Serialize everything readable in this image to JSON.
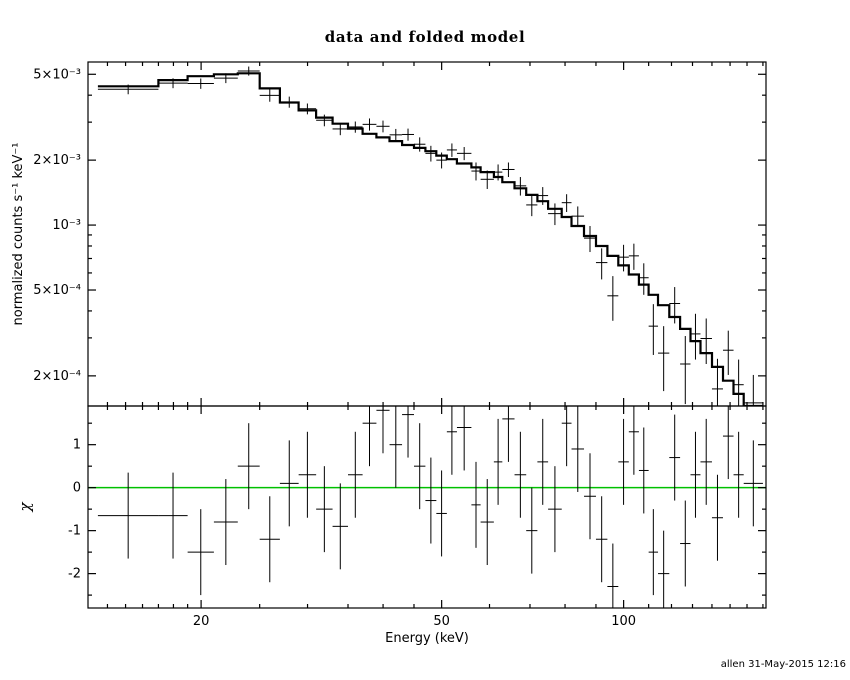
{
  "title": "data and folded model",
  "signature": "allen 31-May-2015 12:16",
  "chart_data": {
    "type": "line",
    "title": "data and folded model",
    "xlabel": "Energy (keV)",
    "xscale": "log",
    "xlim": [
      13,
      172
    ],
    "xticks": {
      "major": [
        20,
        50,
        100
      ],
      "minor": [
        14,
        15,
        16,
        17,
        18,
        19,
        25,
        30,
        35,
        40,
        45,
        60,
        70,
        80,
        90,
        110,
        120,
        130,
        140,
        150,
        160,
        170
      ]
    },
    "colors": {
      "data": "#000000",
      "model": "#000000",
      "zero_line": "#00c000"
    },
    "chi_err": 1.0,
    "panels": [
      {
        "name": "spectrum",
        "ylabel": "normalized counts s⁻¹ keV⁻¹",
        "yscale": "log",
        "ylim": [
          0.000145,
          0.0057
        ],
        "yticks": {
          "major": [
            {
              "v": 0.005,
              "label": "5×10⁻³"
            },
            {
              "v": 0.002,
              "label": "2×10⁻³"
            },
            {
              "v": 0.001,
              "label": "10⁻³"
            },
            {
              "v": 0.0005,
              "label": "5×10⁻⁴"
            },
            {
              "v": 0.0002,
              "label": "2×10⁻⁴"
            }
          ],
          "minor": [
            0.003,
            0.004,
            0.0003,
            0.0004,
            0.0006,
            0.0007,
            0.0008,
            0.0009
          ]
        }
      },
      {
        "name": "residuals",
        "ylabel": "χ",
        "yscale": "linear",
        "ylim": [
          -2.8,
          1.9
        ],
        "yticks": {
          "major": [
            {
              "v": 1,
              "label": "1"
            },
            {
              "v": 0,
              "label": "0"
            },
            {
              "v": -1,
              "label": "-1"
            },
            {
              "v": -2,
              "label": "-2"
            }
          ],
          "minor": [
            1.5,
            0.5,
            -0.5,
            -1.5,
            -2.5
          ]
        }
      }
    ],
    "bins_format": [
      "e_lo_keV",
      "e_hi_keV",
      "rate",
      "rate_err",
      "model",
      "chi"
    ],
    "bins": [
      [
        13.5,
        17,
        0.00426,
        0.00022,
        0.0044,
        -0.65
      ],
      [
        17,
        19,
        0.00455,
        0.00024,
        0.0047,
        -0.65
      ],
      [
        19,
        21,
        0.00453,
        0.00025,
        0.0049,
        -1.5
      ],
      [
        21,
        23,
        0.0048,
        0.00025,
        0.005,
        -0.8
      ],
      [
        23,
        25,
        0.00518,
        0.00025,
        0.00505,
        0.5
      ],
      [
        25,
        27,
        0.00399,
        0.00026,
        0.0043,
        -1.2
      ],
      [
        27,
        29,
        0.00372,
        0.00022,
        0.0037,
        0.1
      ],
      [
        29,
        31,
        0.00346,
        0.0002,
        0.0034,
        0.3
      ],
      [
        31,
        33,
        0.00306,
        0.00019,
        0.00315,
        -0.5
      ],
      [
        33,
        35,
        0.00279,
        0.00018,
        0.00295,
        -0.9
      ],
      [
        35,
        37,
        0.00285,
        0.00017,
        0.0028,
        0.3
      ],
      [
        37,
        39,
        0.00293,
        0.00019,
        0.00265,
        1.5
      ],
      [
        39,
        41,
        0.00287,
        0.00018,
        0.00255,
        1.8
      ],
      [
        41,
        43,
        0.00262,
        0.00017,
        0.00245,
        1.0
      ],
      [
        43,
        45,
        0.00263,
        0.00017,
        0.00235,
        1.7
      ],
      [
        45,
        47,
        0.00237,
        0.00018,
        0.00228,
        0.5
      ],
      [
        47,
        49,
        0.00215,
        0.00018,
        0.0022,
        -0.3
      ],
      [
        49,
        51,
        0.002,
        0.00017,
        0.0021,
        -0.6
      ],
      [
        51,
        53,
        0.00223,
        0.00016,
        0.00202,
        1.3
      ],
      [
        53,
        56,
        0.00215,
        0.00015,
        0.00193,
        1.4
      ],
      [
        56,
        58,
        0.00178,
        0.00017,
        0.00185,
        -0.4
      ],
      [
        58,
        61,
        0.00163,
        0.00016,
        0.00176,
        -0.8
      ],
      [
        61,
        63,
        0.00176,
        0.00015,
        0.00167,
        0.6
      ],
      [
        63,
        66,
        0.00181,
        0.00014,
        0.00158,
        1.6
      ],
      [
        66,
        69,
        0.00152,
        0.00015,
        0.00148,
        0.3
      ],
      [
        69,
        72,
        0.00124,
        0.00014,
        0.00138,
        -1.0
      ],
      [
        72,
        75,
        0.00137,
        0.00013,
        0.00129,
        0.6
      ],
      [
        75,
        79,
        0.00113,
        0.00013,
        0.00119,
        -0.5
      ],
      [
        79,
        82,
        0.00127,
        0.00012,
        0.00109,
        1.5
      ],
      [
        82,
        86,
        0.0011,
        0.00012,
        0.00099,
        0.9
      ],
      [
        86,
        90,
        0.00087,
        0.00012,
        0.00089,
        -0.2
      ],
      [
        90,
        94,
        0.00067,
        0.00011,
        0.0008,
        -1.2
      ],
      [
        94,
        98,
        0.00047,
        0.00011,
        0.00072,
        -2.3
      ],
      [
        98,
        102,
        0.00071,
        0.0001,
        0.00065,
        0.6
      ],
      [
        102,
        106,
        0.00072,
        0.0001,
        0.00059,
        1.3
      ],
      [
        106,
        110,
        0.00057,
        9.5e-05,
        0.00053,
        0.4
      ],
      [
        110,
        114,
        0.00034,
        9e-05,
        0.000475,
        -1.5
      ],
      [
        114,
        119,
        0.000255,
        8.5e-05,
        0.000425,
        -2.0
      ],
      [
        119,
        124,
        0.000433,
        8.3e-05,
        0.000375,
        0.7
      ],
      [
        124,
        129,
        0.000227,
        7.9e-05,
        0.00033,
        -1.3
      ],
      [
        129,
        134,
        0.000313,
        7.5e-05,
        0.00029,
        0.3
      ],
      [
        134,
        140,
        0.000298,
        7.1e-05,
        0.000255,
        0.6
      ],
      [
        140,
        146,
        0.000174,
        6.6e-05,
        0.00022,
        -0.7
      ],
      [
        146,
        152,
        0.000263,
        6.1e-05,
        0.00019,
        1.2
      ],
      [
        152,
        158,
        0.000182,
        5.6e-05,
        0.000165,
        0.3
      ],
      [
        158,
        170,
        0.00015,
        5.2e-05,
        0.000145,
        0.1
      ]
    ]
  }
}
